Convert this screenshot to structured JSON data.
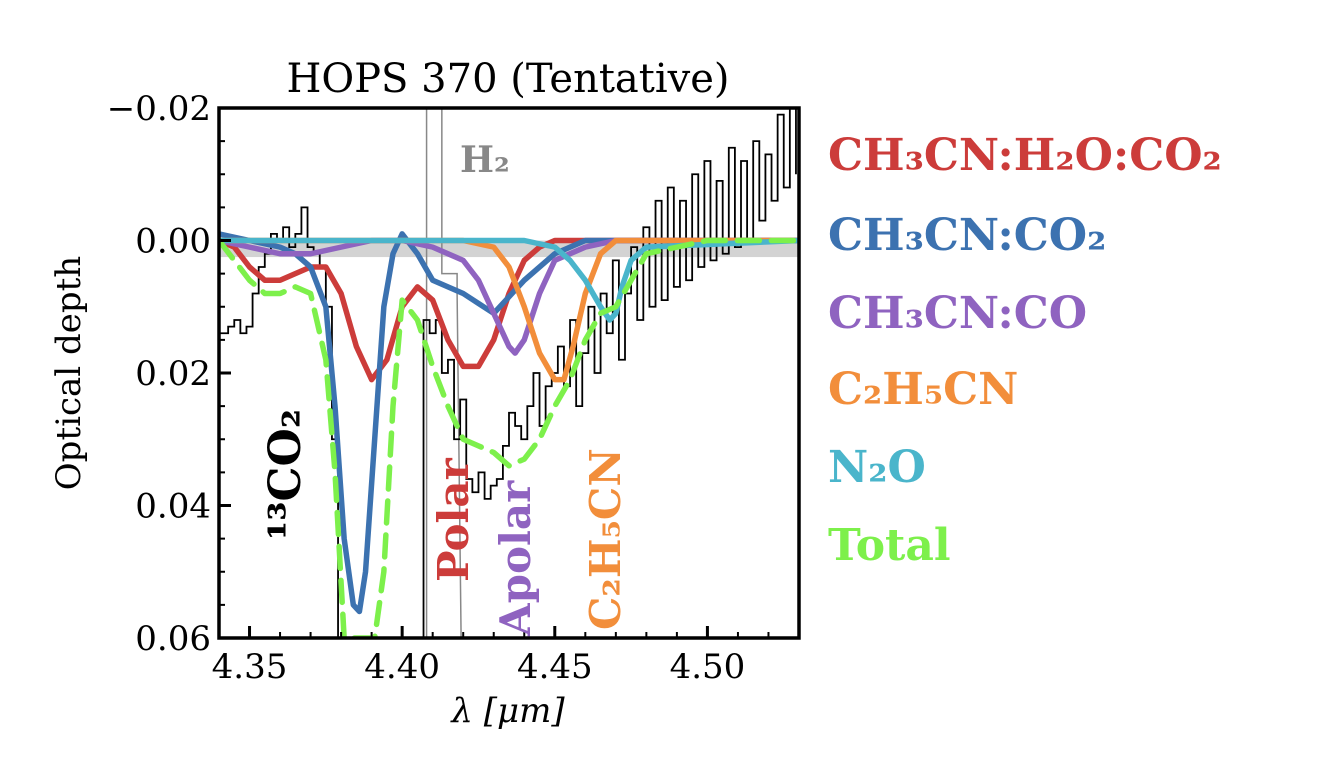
{
  "chart_data": {
    "type": "line",
    "title": "HOPS 370 (Tentative)",
    "xlabel": "λ [μm]",
    "ylabel": "Optical depth",
    "xlim": [
      4.34,
      4.53
    ],
    "ylim": [
      0.06,
      -0.02
    ],
    "y_inverted": true,
    "xticks": [
      4.35,
      4.4,
      4.45,
      4.5
    ],
    "xtick_labels": [
      "4.35",
      "4.40",
      "4.45",
      "4.50"
    ],
    "yticks": [
      -0.02,
      0.0,
      0.02,
      0.04,
      0.06
    ],
    "ytick_labels": [
      "−0.02",
      "0.00",
      "0.02",
      "0.04",
      "0.06"
    ],
    "grid": false,
    "legend_placement": "outside-right",
    "shaded_band": {
      "y": [
        0.0,
        0.0025
      ],
      "color": "#d3d3d3"
    },
    "observed": {
      "name": "",
      "style": "steps",
      "color": "#000000",
      "x": [
        4.34,
        4.343,
        4.345,
        4.347,
        4.349,
        4.351,
        4.353,
        4.355,
        4.357,
        4.359,
        4.361,
        4.363,
        4.365,
        4.367,
        4.369,
        4.371,
        4.373,
        4.375,
        4.377,
        4.379,
        4.381,
        4.383,
        4.385,
        4.387,
        4.389,
        4.391,
        4.393,
        4.395,
        4.397,
        4.399,
        4.401,
        4.403,
        4.405,
        4.407,
        4.409,
        4.411,
        4.413,
        4.415,
        4.417,
        4.419,
        4.421,
        4.423,
        4.425,
        4.427,
        4.429,
        4.431,
        4.433,
        4.435,
        4.437,
        4.439,
        4.441,
        4.443,
        4.445,
        4.447,
        4.449,
        4.451,
        4.453,
        4.455,
        4.457,
        4.459,
        4.461,
        4.463,
        4.465,
        4.467,
        4.469,
        4.471,
        4.473,
        4.475,
        4.477,
        4.479,
        4.481,
        4.483,
        4.485,
        4.487,
        4.489,
        4.491,
        4.493,
        4.495,
        4.497,
        4.499,
        4.501,
        4.503,
        4.505,
        4.507,
        4.509,
        4.511,
        4.513,
        4.515,
        4.517,
        4.519,
        4.521,
        4.523,
        4.525,
        4.527,
        4.529
      ],
      "y": [
        0.014,
        0.013,
        0.012,
        0.014,
        0.013,
        0.008,
        0.004,
        0.002,
        -0.001,
        0.0,
        -0.002,
        0.001,
        -0.001,
        -0.005,
        0.001,
        0.002,
        0.004,
        0.01,
        0.03,
        0.06,
        0.06,
        0.06,
        0.06,
        0.06,
        0.06,
        0.06,
        0.06,
        0.06,
        0.06,
        0.06,
        0.06,
        0.06,
        0.06,
        0.012,
        0.014,
        0.012,
        0.02,
        0.018,
        0.03,
        0.024,
        0.036,
        0.038,
        0.035,
        0.039,
        0.037,
        0.036,
        0.031,
        0.026,
        0.028,
        0.03,
        0.025,
        0.02,
        0.028,
        0.022,
        0.02,
        0.016,
        0.022,
        0.012,
        0.025,
        0.017,
        0.01,
        0.02,
        0.008,
        0.014,
        0.003,
        0.018,
        0.008,
        0.001,
        0.012,
        -0.002,
        0.01,
        -0.006,
        0.009,
        -0.008,
        0.007,
        -0.006,
        0.006,
        -0.01,
        0.004,
        -0.012,
        0.003,
        -0.009,
        0.002,
        -0.014,
        0.001,
        -0.012,
        0.0,
        -0.015,
        -0.003,
        -0.013,
        -0.006,
        -0.019,
        -0.008,
        -0.02,
        -0.01
      ]
    },
    "h2_spike": {
      "label": "H₂",
      "color": "#888888",
      "x": [
        4.408,
        4.413,
        4.418
      ],
      "y": [
        -0.02,
        0.005,
        0.008
      ]
    },
    "series": [
      {
        "name": "CH₃CN:H₂O:CO₂",
        "color": "#cc3c3a",
        "dash": false,
        "x": [
          4.34,
          4.345,
          4.35,
          4.355,
          4.36,
          4.365,
          4.37,
          4.375,
          4.38,
          4.385,
          4.39,
          4.395,
          4.4,
          4.405,
          4.41,
          4.415,
          4.42,
          4.425,
          4.43,
          4.435,
          4.44,
          4.445,
          4.45,
          4.46,
          4.47,
          4.48,
          4.49,
          4.5,
          4.53
        ],
        "y": [
          0.0,
          0.001,
          0.004,
          0.006,
          0.006,
          0.005,
          0.004,
          0.004,
          0.008,
          0.016,
          0.021,
          0.018,
          0.01,
          0.007,
          0.009,
          0.015,
          0.019,
          0.019,
          0.015,
          0.008,
          0.003,
          0.001,
          0.0,
          0.0,
          0.0,
          0.0,
          0.0,
          0.0,
          0.0
        ]
      },
      {
        "name": "CH₃CN:CO₂",
        "color": "#3c72b0",
        "dash": false,
        "x": [
          4.34,
          4.35,
          4.36,
          4.365,
          4.37,
          4.375,
          4.378,
          4.381,
          4.384,
          4.386,
          4.388,
          4.391,
          4.394,
          4.397,
          4.4,
          4.405,
          4.41,
          4.415,
          4.42,
          4.425,
          4.43,
          4.435,
          4.44,
          4.45,
          4.46,
          4.47,
          4.53
        ],
        "y": [
          -0.001,
          0.0,
          0.001,
          0.002,
          0.004,
          0.01,
          0.025,
          0.045,
          0.055,
          0.056,
          0.05,
          0.03,
          0.01,
          0.002,
          -0.001,
          0.002,
          0.006,
          0.007,
          0.008,
          0.0095,
          0.011,
          0.0085,
          0.006,
          0.002,
          0.0,
          0.0,
          0.0
        ]
      },
      {
        "name": "CH₃CN:CO",
        "color": "#8f63c0",
        "dash": false,
        "x": [
          4.34,
          4.35,
          4.36,
          4.37,
          4.38,
          4.39,
          4.4,
          4.41,
          4.42,
          4.425,
          4.43,
          4.435,
          4.437,
          4.44,
          4.445,
          4.45,
          4.46,
          4.47,
          4.48,
          4.5,
          4.53
        ],
        "y": [
          0.0,
          0.001,
          0.002,
          0.002,
          0.001,
          0.0,
          0.0,
          0.001,
          0.003,
          0.006,
          0.011,
          0.016,
          0.017,
          0.015,
          0.008,
          0.003,
          0.001,
          0.0,
          0.0,
          0.0,
          0.0
        ]
      },
      {
        "name": "C₂H₅CN",
        "color": "#f28e3b",
        "dash": false,
        "x": [
          4.34,
          4.4,
          4.42,
          4.43,
          4.435,
          4.44,
          4.445,
          4.45,
          4.453,
          4.456,
          4.46,
          4.465,
          4.47,
          4.48,
          4.53
        ],
        "y": [
          0.0,
          0.0,
          0.0,
          0.001,
          0.004,
          0.01,
          0.017,
          0.021,
          0.021,
          0.016,
          0.008,
          0.002,
          0.0,
          0.0,
          0.0
        ]
      },
      {
        "name": "N₂O",
        "color": "#4ab5cb",
        "dash": false,
        "x": [
          4.34,
          4.4,
          4.43,
          4.44,
          4.45,
          4.455,
          4.46,
          4.465,
          4.468,
          4.47,
          4.472,
          4.475,
          4.48,
          4.53
        ],
        "y": [
          0.0,
          0.0,
          0.0,
          0.0,
          0.001,
          0.003,
          0.006,
          0.01,
          0.012,
          0.011,
          0.007,
          0.003,
          0.001,
          0.0
        ]
      },
      {
        "name": "Total",
        "color": "#7df04b",
        "dash": true,
        "x": [
          4.34,
          4.345,
          4.35,
          4.355,
          4.36,
          4.365,
          4.37,
          4.375,
          4.378,
          4.381,
          4.384,
          4.386,
          4.388,
          4.391,
          4.394,
          4.397,
          4.4,
          4.405,
          4.41,
          4.415,
          4.42,
          4.425,
          4.43,
          4.435,
          4.44,
          4.445,
          4.45,
          4.455,
          4.46,
          4.465,
          4.47,
          4.475,
          4.48,
          4.49,
          4.5,
          4.53
        ],
        "y": [
          0.0,
          0.003,
          0.006,
          0.008,
          0.008,
          0.007,
          0.008,
          0.018,
          0.035,
          0.06,
          0.06,
          0.06,
          0.06,
          0.06,
          0.05,
          0.025,
          0.009,
          0.012,
          0.019,
          0.025,
          0.03,
          0.031,
          0.032,
          0.034,
          0.033,
          0.03,
          0.025,
          0.021,
          0.015,
          0.011,
          0.01,
          0.006,
          0.002,
          0.001,
          0.0,
          0.0
        ]
      }
    ],
    "annotations": [
      {
        "text": "¹³CO₂",
        "color": "#000000"
      },
      {
        "text": "Polar",
        "color": "#cc3c3a"
      },
      {
        "text": "Apolar",
        "color": "#8f63c0"
      },
      {
        "text": "C₂H₅CN",
        "color": "#f28e3b"
      }
    ]
  }
}
